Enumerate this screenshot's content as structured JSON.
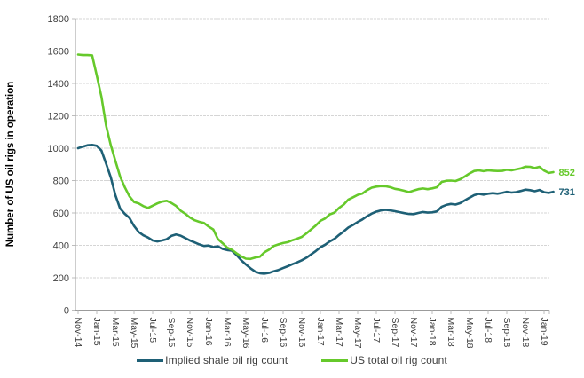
{
  "chart_data": {
    "type": "line",
    "title": "",
    "xlabel": "",
    "ylabel": "Number of US oil rigs in operation",
    "ylim": [
      0,
      1800
    ],
    "yticks": [
      0,
      200,
      400,
      600,
      800,
      1000,
      1200,
      1400,
      1600,
      1800
    ],
    "grid": true,
    "legend_position": "bottom",
    "x_unit": "month",
    "x_start": "Nov-14",
    "x_end": "Feb-19",
    "points_per_month": 2,
    "categories": [
      "Nov-14",
      "Jan-15",
      "Mar-15",
      "May-15",
      "Jul-15",
      "Sep-15",
      "Nov-15",
      "Jan-16",
      "Mar-16",
      "May-16",
      "Jul-16",
      "Sep-16",
      "Nov-16",
      "Jan-17",
      "Mar-17",
      "May-17",
      "Jul-17",
      "Sep-17",
      "Nov-17",
      "Jan-18",
      "Mar-18",
      "May-18",
      "Jul-18",
      "Sep-18",
      "Nov-18",
      "Jan-19"
    ],
    "series": [
      {
        "name": "Implied shale oil rig count",
        "color": "#1E6076",
        "end_label": "731",
        "values": [
          1000,
          1010,
          1018,
          1020,
          1015,
          985,
          905,
          820,
          710,
          628,
          595,
          570,
          520,
          482,
          462,
          448,
          430,
          424,
          430,
          438,
          458,
          467,
          460,
          445,
          430,
          418,
          406,
          396,
          399,
          389,
          394,
          378,
          371,
          367,
          340,
          308,
          282,
          258,
          238,
          228,
          225,
          230,
          240,
          248,
          260,
          271,
          284,
          295,
          308,
          324,
          344,
          365,
          388,
          404,
          424,
          440,
          464,
          486,
          510,
          526,
          544,
          560,
          580,
          596,
          608,
          616,
          619,
          616,
          611,
          605,
          599,
          594,
          593,
          600,
          606,
          602,
          604,
          610,
          638,
          650,
          656,
          652,
          661,
          678,
          694,
          710,
          718,
          713,
          719,
          722,
          719,
          724,
          731,
          726,
          729,
          736,
          744,
          741,
          734,
          742,
          728,
          724,
          731
        ]
      },
      {
        "name": "US total oil rig count",
        "color": "#66C92B",
        "end_label": "852",
        "values": [
          1578,
          1575,
          1575,
          1573,
          1450,
          1317,
          1140,
          1019,
          922,
          825,
          760,
          703,
          668,
          659,
          642,
          631,
          645,
          659,
          670,
          675,
          662,
          644,
          614,
          595,
          572,
          555,
          545,
          538,
          516,
          498,
          439,
          413,
          386,
          372,
          351,
          332,
          318,
          316,
          325,
          330,
          357,
          374,
          396,
          406,
          414,
          420,
          432,
          441,
          452,
          474,
          498,
          523,
          551,
          566,
          591,
          602,
          631,
          652,
          683,
          697,
          712,
          720,
          741,
          756,
          763,
          766,
          765,
          759,
          749,
          744,
          737,
          729,
          738,
          747,
          751,
          747,
          752,
          759,
          791,
          799,
          800,
          797,
          808,
          825,
          844,
          859,
          863,
          858,
          863,
          861,
          859,
          860,
          867,
          863,
          869,
          875,
          886,
          885,
          877,
          885,
          862,
          847,
          852
        ]
      }
    ]
  },
  "colors": {
    "grid": "#D5D5D5",
    "axis": "#9B9B9B",
    "tick_mark": "#BDBDBD",
    "tick_text": "#3F3F3F",
    "axis_title": "#000000"
  }
}
